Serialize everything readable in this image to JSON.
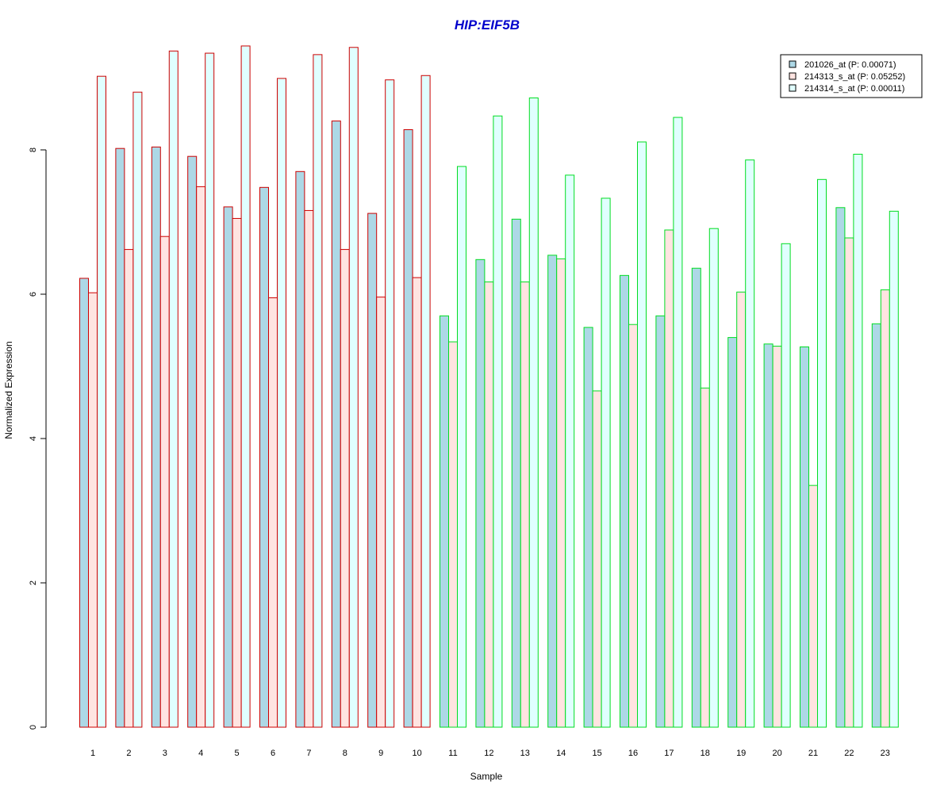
{
  "chart_data": {
    "type": "bar",
    "title": "HIP:EIF5B",
    "xlabel": "Sample",
    "ylabel": "Normalized Expression",
    "ylim": [
      0,
      9.5
    ],
    "yticks": [
      "0",
      "2",
      "4",
      "6",
      "8"
    ],
    "categories": [
      "1",
      "2",
      "3",
      "4",
      "5",
      "6",
      "7",
      "8",
      "9",
      "10",
      "11",
      "12",
      "13",
      "14",
      "15",
      "16",
      "17",
      "18",
      "19",
      "20",
      "21",
      "22",
      "23"
    ],
    "group_border_colors": [
      "#cc0000",
      "#cc0000",
      "#cc0000",
      "#cc0000",
      "#cc0000",
      "#cc0000",
      "#cc0000",
      "#cc0000",
      "#cc0000",
      "#cc0000",
      "#00dd22",
      "#00dd22",
      "#00dd22",
      "#00dd22",
      "#00dd22",
      "#00dd22",
      "#00dd22",
      "#00dd22",
      "#00dd22",
      "#00dd22",
      "#00dd22",
      "#00dd22",
      "#00dd22"
    ],
    "series": [
      {
        "name": "201026_at (P: 0.00071)",
        "fill": "#add8e6",
        "values": [
          6.22,
          8.02,
          8.04,
          7.91,
          7.21,
          7.48,
          7.7,
          8.4,
          7.12,
          8.28,
          5.7,
          6.48,
          7.04,
          6.54,
          5.54,
          6.26,
          5.7,
          6.36,
          5.4,
          5.31,
          5.27,
          7.2,
          5.59
        ]
      },
      {
        "name": "214313_s_at (P: 0.05252)",
        "fill": "#ffe4e1",
        "values": [
          6.02,
          6.62,
          6.8,
          7.49,
          7.05,
          5.95,
          7.16,
          6.62,
          5.96,
          6.23,
          5.34,
          6.17,
          6.17,
          6.49,
          4.66,
          5.58,
          6.89,
          4.7,
          6.03,
          5.28,
          3.35,
          6.78,
          6.06
        ]
      },
      {
        "name": "214314_s_at (P: 0.00011)",
        "fill": "#e0ffff",
        "values": [
          9.02,
          8.8,
          9.37,
          9.34,
          9.44,
          8.99,
          9.32,
          9.42,
          8.97,
          9.03,
          7.77,
          8.47,
          8.72,
          7.65,
          7.33,
          8.11,
          8.45,
          6.91,
          7.86,
          6.7,
          7.59,
          7.94,
          7.15
        ]
      }
    ],
    "legend_position": "top-right",
    "colors": {
      "title": "#0000cc",
      "axis": "#000000"
    }
  }
}
